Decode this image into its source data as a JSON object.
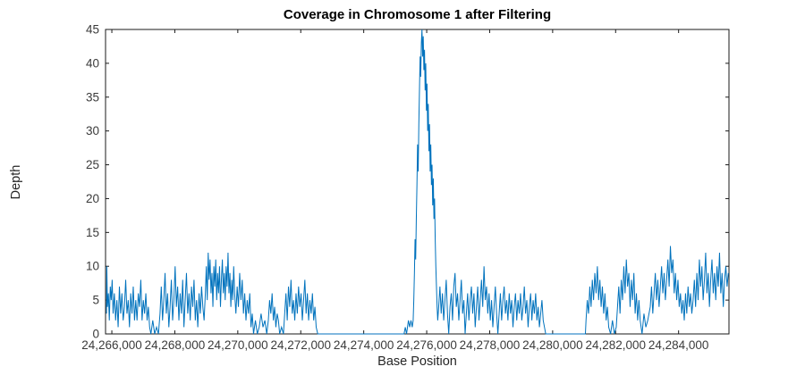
{
  "title": "Coverage in Chromosome 1 after Filtering",
  "chart_data": {
    "type": "line",
    "title": "Coverage in Chromosome 1 after Filtering",
    "xlabel": "Base Position",
    "ylabel": "Depth",
    "xlim": [
      24265800,
      24285600
    ],
    "ylim": [
      0,
      45
    ],
    "grid": false,
    "legend": null,
    "line_color": "#0072BD",
    "axis_color": "#1a1a1a",
    "tick_label_color": "#3b3b3b",
    "x_ticks": [
      24266000,
      24268000,
      24270000,
      24272000,
      24274000,
      24276000,
      24278000,
      24280000,
      24282000,
      24284000
    ],
    "x_tick_labels": [
      "24,266,000",
      "24,268,000",
      "24,270,000",
      "24,272,000",
      "24,274,000",
      "24,276,000",
      "24,278,000",
      "24,280,000",
      "24,282,000",
      "24,284,000"
    ],
    "y_ticks": [
      0,
      5,
      10,
      15,
      20,
      25,
      30,
      35,
      40,
      45
    ],
    "y_tick_labels": [
      "0",
      "5",
      "10",
      "15",
      "20",
      "25",
      "30",
      "35",
      "40",
      "45"
    ],
    "points": [
      [
        24265830,
        3
      ],
      [
        24265840,
        10
      ],
      [
        24265860,
        4
      ],
      [
        24265890,
        6
      ],
      [
        24265920,
        2
      ],
      [
        24265950,
        7
      ],
      [
        24265980,
        5
      ],
      [
        24266010,
        8
      ],
      [
        24266040,
        3
      ],
      [
        24266080,
        6
      ],
      [
        24266120,
        2
      ],
      [
        24266160,
        5
      ],
      [
        24266200,
        1
      ],
      [
        24266240,
        7
      ],
      [
        24266280,
        3
      ],
      [
        24266320,
        6
      ],
      [
        24266360,
        2
      ],
      [
        24266400,
        4
      ],
      [
        24266440,
        8
      ],
      [
        24266480,
        3
      ],
      [
        24266520,
        5
      ],
      [
        24266560,
        1
      ],
      [
        24266600,
        6
      ],
      [
        24266640,
        3
      ],
      [
        24266680,
        7
      ],
      [
        24266720,
        2
      ],
      [
        24266760,
        5
      ],
      [
        24266800,
        2
      ],
      [
        24266840,
        6
      ],
      [
        24266880,
        4
      ],
      [
        24266920,
        8
      ],
      [
        24266960,
        2
      ],
      [
        24267000,
        5
      ],
      [
        24267040,
        3
      ],
      [
        24267080,
        6
      ],
      [
        24267120,
        2
      ],
      [
        24267160,
        4
      ],
      [
        24267200,
        1
      ],
      [
        24267240,
        0
      ],
      [
        24267300,
        2
      ],
      [
        24267360,
        0
      ],
      [
        24267420,
        1
      ],
      [
        24267480,
        0
      ],
      [
        24267530,
        3
      ],
      [
        24267570,
        7
      ],
      [
        24267610,
        2
      ],
      [
        24267650,
        5
      ],
      [
        24267690,
        9
      ],
      [
        24267730,
        3
      ],
      [
        24267770,
        6
      ],
      [
        24267810,
        1
      ],
      [
        24267850,
        4
      ],
      [
        24267890,
        8
      ],
      [
        24267930,
        2
      ],
      [
        24267970,
        5
      ],
      [
        24268010,
        10
      ],
      [
        24268050,
        4
      ],
      [
        24268090,
        7
      ],
      [
        24268130,
        2
      ],
      [
        24268170,
        6
      ],
      [
        24268210,
        3
      ],
      [
        24268250,
        8
      ],
      [
        24268290,
        1
      ],
      [
        24268330,
        5
      ],
      [
        24268370,
        9
      ],
      [
        24268410,
        3
      ],
      [
        24268450,
        6
      ],
      [
        24268490,
        2
      ],
      [
        24268530,
        7
      ],
      [
        24268570,
        4
      ],
      [
        24268610,
        8
      ],
      [
        24268650,
        2
      ],
      [
        24268690,
        5
      ],
      [
        24268730,
        1
      ],
      [
        24268770,
        6
      ],
      [
        24268810,
        3
      ],
      [
        24268850,
        7
      ],
      [
        24268890,
        4
      ],
      [
        24268930,
        2
      ],
      [
        24268970,
        6
      ],
      [
        24269000,
        10
      ],
      [
        24269030,
        5
      ],
      [
        24269060,
        12
      ],
      [
        24269090,
        8
      ],
      [
        24269120,
        11
      ],
      [
        24269150,
        6
      ],
      [
        24269180,
        9
      ],
      [
        24269210,
        4
      ],
      [
        24269240,
        10
      ],
      [
        24269270,
        7
      ],
      [
        24269300,
        11
      ],
      [
        24269330,
        5
      ],
      [
        24269360,
        9
      ],
      [
        24269390,
        6
      ],
      [
        24269420,
        10
      ],
      [
        24269450,
        4
      ],
      [
        24269480,
        8
      ],
      [
        24269510,
        11
      ],
      [
        24269540,
        6
      ],
      [
        24269570,
        9
      ],
      [
        24269600,
        5
      ],
      [
        24269630,
        10
      ],
      [
        24269660,
        7
      ],
      [
        24269690,
        12
      ],
      [
        24269720,
        6
      ],
      [
        24269750,
        9
      ],
      [
        24269780,
        4
      ],
      [
        24269810,
        8
      ],
      [
        24269840,
        5
      ],
      [
        24269870,
        10
      ],
      [
        24269900,
        6
      ],
      [
        24269940,
        3
      ],
      [
        24269980,
        7
      ],
      [
        24270020,
        4
      ],
      [
        24270060,
        9
      ],
      [
        24270100,
        5
      ],
      [
        24270140,
        8
      ],
      [
        24270180,
        3
      ],
      [
        24270220,
        6
      ],
      [
        24270260,
        2
      ],
      [
        24270300,
        5
      ],
      [
        24270340,
        3
      ],
      [
        24270380,
        6
      ],
      [
        24270420,
        1
      ],
      [
        24270460,
        3
      ],
      [
        24270500,
        0
      ],
      [
        24270560,
        2
      ],
      [
        24270620,
        0
      ],
      [
        24270680,
        1
      ],
      [
        24270740,
        3
      ],
      [
        24270800,
        1
      ],
      [
        24270860,
        2
      ],
      [
        24270920,
        0
      ],
      [
        24270970,
        2
      ],
      [
        24271010,
        5
      ],
      [
        24271050,
        3
      ],
      [
        24271090,
        6
      ],
      [
        24271130,
        2
      ],
      [
        24271170,
        4
      ],
      [
        24271210,
        1
      ],
      [
        24271250,
        3
      ],
      [
        24271290,
        2
      ],
      [
        24271330,
        0
      ],
      [
        24271390,
        1
      ],
      [
        24271450,
        0
      ],
      [
        24271490,
        3
      ],
      [
        24271530,
        6
      ],
      [
        24271570,
        2
      ],
      [
        24271610,
        7
      ],
      [
        24271650,
        4
      ],
      [
        24271690,
        8
      ],
      [
        24271730,
        3
      ],
      [
        24271770,
        5
      ],
      [
        24271810,
        2
      ],
      [
        24271850,
        6
      ],
      [
        24271890,
        3
      ],
      [
        24271930,
        7
      ],
      [
        24271970,
        4
      ],
      [
        24272010,
        6
      ],
      [
        24272050,
        2
      ],
      [
        24272090,
        5
      ],
      [
        24272130,
        8
      ],
      [
        24272170,
        3
      ],
      [
        24272210,
        6
      ],
      [
        24272250,
        2
      ],
      [
        24272290,
        5
      ],
      [
        24272330,
        3
      ],
      [
        24272370,
        6
      ],
      [
        24272410,
        2
      ],
      [
        24272450,
        4
      ],
      [
        24272490,
        1
      ],
      [
        24272540,
        0
      ],
      [
        24275280,
        0
      ],
      [
        24275320,
        1
      ],
      [
        24275360,
        0
      ],
      [
        24275420,
        2
      ],
      [
        24275460,
        1
      ],
      [
        24275500,
        2
      ],
      [
        24275540,
        1
      ],
      [
        24275570,
        2
      ],
      [
        24275590,
        5
      ],
      [
        24275610,
        9
      ],
      [
        24275630,
        14
      ],
      [
        24275650,
        11
      ],
      [
        24275670,
        17
      ],
      [
        24275690,
        22
      ],
      [
        24275710,
        28
      ],
      [
        24275730,
        24
      ],
      [
        24275750,
        31
      ],
      [
        24275770,
        36
      ],
      [
        24275790,
        41
      ],
      [
        24275810,
        38
      ],
      [
        24275830,
        43
      ],
      [
        24275850,
        45
      ],
      [
        24275870,
        41
      ],
      [
        24275890,
        44
      ],
      [
        24275910,
        39
      ],
      [
        24275930,
        42
      ],
      [
        24275950,
        36
      ],
      [
        24275970,
        40
      ],
      [
        24275990,
        33
      ],
      [
        24276010,
        37
      ],
      [
        24276030,
        30
      ],
      [
        24276050,
        34
      ],
      [
        24276070,
        27
      ],
      [
        24276090,
        31
      ],
      [
        24276110,
        24
      ],
      [
        24276130,
        28
      ],
      [
        24276150,
        22
      ],
      [
        24276170,
        25
      ],
      [
        24276190,
        19
      ],
      [
        24276210,
        23
      ],
      [
        24276230,
        17
      ],
      [
        24276250,
        20
      ],
      [
        24276270,
        14
      ],
      [
        24276290,
        10
      ],
      [
        24276310,
        7
      ],
      [
        24276330,
        4
      ],
      [
        24276350,
        2
      ],
      [
        24276380,
        4
      ],
      [
        24276420,
        7
      ],
      [
        24276460,
        3
      ],
      [
        24276500,
        6
      ],
      [
        24276540,
        2
      ],
      [
        24276580,
        5
      ],
      [
        24276620,
        8
      ],
      [
        24276660,
        3
      ],
      [
        24276700,
        0
      ],
      [
        24276740,
        4
      ],
      [
        24276780,
        6
      ],
      [
        24276820,
        2
      ],
      [
        24276860,
        7
      ],
      [
        24276900,
        9
      ],
      [
        24276940,
        4
      ],
      [
        24276980,
        6
      ],
      [
        24277020,
        2
      ],
      [
        24277060,
        5
      ],
      [
        24277100,
        8
      ],
      [
        24277140,
        3
      ],
      [
        24277180,
        5
      ],
      [
        24277220,
        0
      ],
      [
        24277260,
        3
      ],
      [
        24277300,
        6
      ],
      [
        24277340,
        2
      ],
      [
        24277380,
        5
      ],
      [
        24277420,
        7
      ],
      [
        24277460,
        3
      ],
      [
        24277500,
        6
      ],
      [
        24277540,
        1
      ],
      [
        24277580,
        4
      ],
      [
        24277620,
        7
      ],
      [
        24277660,
        2
      ],
      [
        24277700,
        5
      ],
      [
        24277740,
        8
      ],
      [
        24277780,
        4
      ],
      [
        24277820,
        10
      ],
      [
        24277860,
        5
      ],
      [
        24277900,
        7
      ],
      [
        24277940,
        3
      ],
      [
        24277980,
        6
      ],
      [
        24278020,
        2
      ],
      [
        24278060,
        5
      ],
      [
        24278100,
        1
      ],
      [
        24278140,
        4
      ],
      [
        24278180,
        7
      ],
      [
        24278220,
        3
      ],
      [
        24278260,
        0
      ],
      [
        24278300,
        3
      ],
      [
        24278340,
        6
      ],
      [
        24278380,
        2
      ],
      [
        24278420,
        5
      ],
      [
        24278460,
        7
      ],
      [
        24278500,
        3
      ],
      [
        24278540,
        5
      ],
      [
        24278580,
        2
      ],
      [
        24278620,
        6
      ],
      [
        24278660,
        3
      ],
      [
        24278700,
        5
      ],
      [
        24278740,
        1
      ],
      [
        24278780,
        4
      ],
      [
        24278820,
        6
      ],
      [
        24278860,
        2
      ],
      [
        24278900,
        5
      ],
      [
        24278940,
        3
      ],
      [
        24278980,
        6
      ],
      [
        24279020,
        2
      ],
      [
        24279060,
        4
      ],
      [
        24279100,
        7
      ],
      [
        24279140,
        3
      ],
      [
        24279180,
        5
      ],
      [
        24279220,
        1
      ],
      [
        24279260,
        4
      ],
      [
        24279300,
        6
      ],
      [
        24279340,
        2
      ],
      [
        24279380,
        5
      ],
      [
        24279420,
        3
      ],
      [
        24279460,
        6
      ],
      [
        24279500,
        2
      ],
      [
        24279540,
        4
      ],
      [
        24279580,
        1
      ],
      [
        24279620,
        3
      ],
      [
        24279660,
        5
      ],
      [
        24279700,
        2
      ],
      [
        24279740,
        1
      ],
      [
        24279780,
        0
      ],
      [
        24281040,
        0
      ],
      [
        24281060,
        2
      ],
      [
        24281100,
        5
      ],
      [
        24281140,
        3
      ],
      [
        24281180,
        7
      ],
      [
        24281220,
        4
      ],
      [
        24281260,
        8
      ],
      [
        24281300,
        5
      ],
      [
        24281340,
        9
      ],
      [
        24281380,
        6
      ],
      [
        24281420,
        10
      ],
      [
        24281460,
        5
      ],
      [
        24281500,
        8
      ],
      [
        24281540,
        4
      ],
      [
        24281580,
        7
      ],
      [
        24281620,
        3
      ],
      [
        24281660,
        6
      ],
      [
        24281700,
        2
      ],
      [
        24281740,
        4
      ],
      [
        24281780,
        1
      ],
      [
        24281840,
        0
      ],
      [
        24281900,
        2
      ],
      [
        24281960,
        0
      ],
      [
        24282020,
        1
      ],
      [
        24282060,
        4
      ],
      [
        24282100,
        7
      ],
      [
        24282140,
        3
      ],
      [
        24282180,
        8
      ],
      [
        24282220,
        5
      ],
      [
        24282260,
        10
      ],
      [
        24282300,
        6
      ],
      [
        24282340,
        11
      ],
      [
        24282380,
        7
      ],
      [
        24282420,
        9
      ],
      [
        24282460,
        4
      ],
      [
        24282500,
        8
      ],
      [
        24282540,
        5
      ],
      [
        24282580,
        9
      ],
      [
        24282620,
        3
      ],
      [
        24282660,
        6
      ],
      [
        24282700,
        2
      ],
      [
        24282740,
        5
      ],
      [
        24282780,
        2
      ],
      [
        24282840,
        0
      ],
      [
        24282900,
        3
      ],
      [
        24282960,
        1
      ],
      [
        24283020,
        2
      ],
      [
        24283100,
        4
      ],
      [
        24283140,
        7
      ],
      [
        24283180,
        3
      ],
      [
        24283220,
        6
      ],
      [
        24283260,
        9
      ],
      [
        24283300,
        5
      ],
      [
        24283340,
        8
      ],
      [
        24283380,
        4
      ],
      [
        24283420,
        7
      ],
      [
        24283460,
        10
      ],
      [
        24283500,
        6
      ],
      [
        24283540,
        9
      ],
      [
        24283580,
        5
      ],
      [
        24283620,
        8
      ],
      [
        24283660,
        11
      ],
      [
        24283700,
        7
      ],
      [
        24283740,
        13
      ],
      [
        24283780,
        9
      ],
      [
        24283820,
        11
      ],
      [
        24283860,
        6
      ],
      [
        24283900,
        9
      ],
      [
        24283940,
        5
      ],
      [
        24283980,
        8
      ],
      [
        24284020,
        4
      ],
      [
        24284060,
        6
      ],
      [
        24284100,
        3
      ],
      [
        24284140,
        5
      ],
      [
        24284180,
        2
      ],
      [
        24284220,
        6
      ],
      [
        24284260,
        3
      ],
      [
        24284300,
        7
      ],
      [
        24284340,
        4
      ],
      [
        24284380,
        6
      ],
      [
        24284420,
        3
      ],
      [
        24284460,
        5
      ],
      [
        24284500,
        8
      ],
      [
        24284540,
        4
      ],
      [
        24284580,
        9
      ],
      [
        24284620,
        5
      ],
      [
        24284660,
        11
      ],
      [
        24284700,
        7
      ],
      [
        24284740,
        10
      ],
      [
        24284780,
        5
      ],
      [
        24284820,
        8
      ],
      [
        24284860,
        12
      ],
      [
        24284900,
        6
      ],
      [
        24284940,
        9
      ],
      [
        24284980,
        4
      ],
      [
        24285020,
        8
      ],
      [
        24285060,
        11
      ],
      [
        24285100,
        6
      ],
      [
        24285140,
        9
      ],
      [
        24285180,
        5
      ],
      [
        24285220,
        10
      ],
      [
        24285260,
        7
      ],
      [
        24285300,
        12
      ],
      [
        24285340,
        6
      ],
      [
        24285380,
        9
      ],
      [
        24285420,
        4
      ],
      [
        24285460,
        8
      ],
      [
        24285500,
        10
      ],
      [
        24285540,
        7
      ],
      [
        24285580,
        9
      ]
    ]
  }
}
